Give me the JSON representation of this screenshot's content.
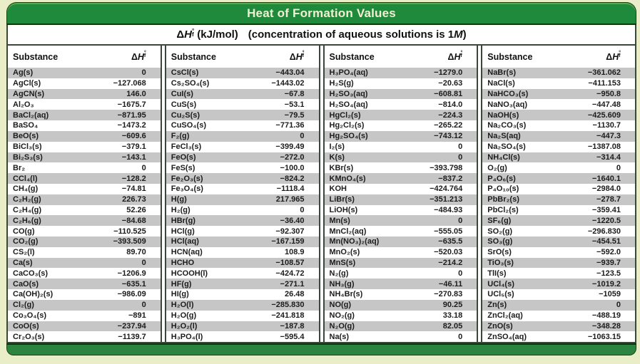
{
  "page": {
    "title": "Heat of Formation Values"
  },
  "symbols": {
    "delta": "Δ",
    "h": "H",
    "degree": "°",
    "f_sub": "f"
  },
  "subtitle": {
    "units": "(kJ/mol)",
    "note_prefix": "(concentration of aqueous solutions is 1",
    "note_m": "M",
    "note_suffix": ")"
  },
  "table": {
    "substance_header": "Substance",
    "columns": [
      {
        "rows": [
          {
            "substance": "Ag(s)",
            "value": "0"
          },
          {
            "substance": "AgCl(s)",
            "value": "−127.068"
          },
          {
            "substance": "AgCN(s)",
            "value": "146.0"
          },
          {
            "substance": "Al₂O₃",
            "value": "−1675.7"
          },
          {
            "substance": "BaCl₂(aq)",
            "value": "−871.95"
          },
          {
            "substance": "BaSO₄",
            "value": "−1473.2"
          },
          {
            "substance": "BeO(s)",
            "value": "−609.6"
          },
          {
            "substance": "BiCl₃(s)",
            "value": "−379.1"
          },
          {
            "substance": "Bi₂S₃(s)",
            "value": "−143.1"
          },
          {
            "substance": "Br₂",
            "value": "0"
          },
          {
            "substance": "CCl₄(l)",
            "value": "−128.2"
          },
          {
            "substance": "CH₄(g)",
            "value": "−74.81"
          },
          {
            "substance": "C₂H₂(g)",
            "value": "226.73"
          },
          {
            "substance": "C₂H₄(g)",
            "value": "52.26"
          },
          {
            "substance": "C₂H₆(g)",
            "value": "−84.68"
          },
          {
            "substance": "CO(g)",
            "value": "−110.525"
          },
          {
            "substance": "CO₂(g)",
            "value": "−393.509"
          },
          {
            "substance": "CS₂(l)",
            "value": "89.70"
          },
          {
            "substance": "Ca(s)",
            "value": "0"
          },
          {
            "substance": "CaCO₃(s)",
            "value": "−1206.9"
          },
          {
            "substance": "CaO(s)",
            "value": "−635.1"
          },
          {
            "substance": "Ca(OH)₂(s)",
            "value": "−986.09"
          },
          {
            "substance": "Cl₂(g)",
            "value": "0"
          },
          {
            "substance": "Co₃O₄(s)",
            "value": "−891"
          },
          {
            "substance": "CoO(s)",
            "value": "−237.94"
          },
          {
            "substance": "Cr₂O₃(s)",
            "value": "−1139.7"
          }
        ]
      },
      {
        "rows": [
          {
            "substance": "CsCl(s)",
            "value": "−443.04"
          },
          {
            "substance": "Cs₂SO₄(s)",
            "value": "−1443.02"
          },
          {
            "substance": "CuI(s)",
            "value": "−67.8"
          },
          {
            "substance": "CuS(s)",
            "value": "−53.1"
          },
          {
            "substance": "Cu₂S(s)",
            "value": "−79.5"
          },
          {
            "substance": "CuSO₄(s)",
            "value": "−771.36"
          },
          {
            "substance": "F₂(g)",
            "value": "0"
          },
          {
            "substance": "FeCl₃(s)",
            "value": "−399.49"
          },
          {
            "substance": "FeO(s)",
            "value": "−272.0"
          },
          {
            "substance": "FeS(s)",
            "value": "−100.0"
          },
          {
            "substance": "Fe₂O₃(s)",
            "value": "−824.2"
          },
          {
            "substance": "Fe₃O₄(s)",
            "value": "−1118.4"
          },
          {
            "substance": "H(g)",
            "value": "217.965"
          },
          {
            "substance": "H₂(g)",
            "value": "0"
          },
          {
            "substance": "HBr(g)",
            "value": "−36.40"
          },
          {
            "substance": "HCl(g)",
            "value": "−92.307"
          },
          {
            "substance": "HCl(aq)",
            "value": "−167.159"
          },
          {
            "substance": "HCN(aq)",
            "value": "108.9"
          },
          {
            "substance": "HCHO",
            "value": "−108.57"
          },
          {
            "substance": "HCOOH(l)",
            "value": "−424.72"
          },
          {
            "substance": "HF(g)",
            "value": "−271.1"
          },
          {
            "substance": "HI(g)",
            "value": "26.48"
          },
          {
            "substance": "H₂O(l)",
            "value": "−285.830"
          },
          {
            "substance": "H₂O(g)",
            "value": "−241.818"
          },
          {
            "substance": "H₂O₂(l)",
            "value": "−187.8"
          },
          {
            "substance": "H₃PO₄(l)",
            "value": "−595.4"
          }
        ]
      },
      {
        "rows": [
          {
            "substance": "H₃PO₄(aq)",
            "value": "−1279.0"
          },
          {
            "substance": "H₂S(g)",
            "value": "−20.63"
          },
          {
            "substance": "H₂SO₃(aq)",
            "value": "−608.81"
          },
          {
            "substance": "H₂SO₄(aq)",
            "value": "−814.0"
          },
          {
            "substance": "HgCl₂(s)",
            "value": "−224.3"
          },
          {
            "substance": "Hg₂Cl₂(s)",
            "value": "−265.22"
          },
          {
            "substance": "Hg₂SO₄(s)",
            "value": "−743.12"
          },
          {
            "substance": "I₂(s)",
            "value": "0"
          },
          {
            "substance": "K(s)",
            "value": "0"
          },
          {
            "substance": "KBr(s)",
            "value": "−393.798"
          },
          {
            "substance": "KMnO₄(s)",
            "value": "−837.2"
          },
          {
            "substance": "KOH",
            "value": "−424.764"
          },
          {
            "substance": "LiBr(s)",
            "value": "−351.213"
          },
          {
            "substance": "LiOH(s)",
            "value": "−484.93"
          },
          {
            "substance": "Mn(s)",
            "value": "0"
          },
          {
            "substance": "MnCl₂(aq)",
            "value": "−555.05"
          },
          {
            "substance": "Mn(NO₃)₂(aq)",
            "value": "−635.5"
          },
          {
            "substance": "MnO₂(s)",
            "value": "−520.03"
          },
          {
            "substance": "MnS(s)",
            "value": "−214.2"
          },
          {
            "substance": "N₂(g)",
            "value": "0"
          },
          {
            "substance": "NH₃(g)",
            "value": "−46.11"
          },
          {
            "substance": "NH₄Br(s)",
            "value": "−270.83"
          },
          {
            "substance": "NO(g)",
            "value": "90.25"
          },
          {
            "substance": "NO₂(g)",
            "value": "33.18"
          },
          {
            "substance": "N₂O(g)",
            "value": "82.05"
          },
          {
            "substance": "Na(s)",
            "value": "0"
          }
        ]
      },
      {
        "rows": [
          {
            "substance": "NaBr(s)",
            "value": "−361.062"
          },
          {
            "substance": "NaCl(s)",
            "value": "−411.153"
          },
          {
            "substance": "NaHCO₃(s)",
            "value": "−950.8"
          },
          {
            "substance": "NaNO₃(aq)",
            "value": "−447.48"
          },
          {
            "substance": "NaOH(s)",
            "value": "−425.609"
          },
          {
            "substance": "Na₂CO₃(s)",
            "value": "−1130.7"
          },
          {
            "substance": "Na₂S(aq)",
            "value": "−447.3"
          },
          {
            "substance": "Na₂SO₄(s)",
            "value": "−1387.08"
          },
          {
            "substance": "NH₄Cl(s)",
            "value": "−314.4"
          },
          {
            "substance": "O₂(g)",
            "value": "0"
          },
          {
            "substance": "P₄O₆(s)",
            "value": "−1640.1"
          },
          {
            "substance": "P₄O₁₀(s)",
            "value": "−2984.0"
          },
          {
            "substance": "PbBr₂(s)",
            "value": "−278.7"
          },
          {
            "substance": "PbCl₂(s)",
            "value": "−359.41"
          },
          {
            "substance": "SF₆(g)",
            "value": "−1220.5"
          },
          {
            "substance": "SO₂(g)",
            "value": "−296.830"
          },
          {
            "substance": "SO₃(g)",
            "value": "−454.51"
          },
          {
            "substance": "SrO(s)",
            "value": "−592.0"
          },
          {
            "substance": "TiO₃(s)",
            "value": "−939.7"
          },
          {
            "substance": "TlI(s)",
            "value": "−123.5"
          },
          {
            "substance": "UCl₄(s)",
            "value": "−1019.2"
          },
          {
            "substance": "UCl₅(s)",
            "value": "−1059"
          },
          {
            "substance": "Zn(s)",
            "value": "0"
          },
          {
            "substance": "ZnCl₂(aq)",
            "value": "−488.19"
          },
          {
            "substance": "ZnO(s)",
            "value": "−348.28"
          },
          {
            "substance": "ZnSO₄(aq)",
            "value": "−1063.15"
          }
        ]
      }
    ]
  }
}
